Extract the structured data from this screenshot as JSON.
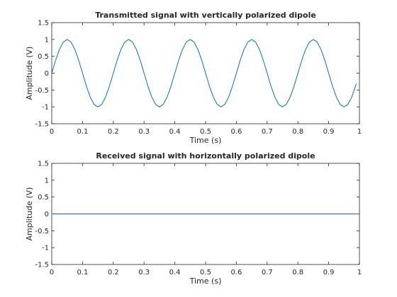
{
  "chart_data": [
    {
      "type": "line",
      "title": "Transmitted signal with vertically polarized dipole",
      "xlabel": "Time (s)",
      "ylabel": "Amplitude (V)",
      "xlim": [
        0,
        1
      ],
      "ylim": [
        -1.5,
        1.5
      ],
      "x_ticks": [
        "0",
        "0.1",
        "0.2",
        "0.3",
        "0.4",
        "0.5",
        "0.6",
        "0.7",
        "0.8",
        "0.9",
        "1"
      ],
      "y_ticks": [
        "-1.5",
        "-1",
        "-0.5",
        "0",
        "0.5",
        "1",
        "1.5"
      ],
      "grid": false,
      "line_color": "#0072bd",
      "series": [
        {
          "x": [
            0,
            0.0125,
            0.025,
            0.0375,
            0.05,
            0.0625,
            0.075,
            0.0875,
            0.1,
            0.1125,
            0.125,
            0.1375,
            0.15,
            0.1625,
            0.175,
            0.1875,
            0.2,
            0.2125,
            0.225,
            0.2375,
            0.25,
            0.2625,
            0.275,
            0.2875,
            0.3,
            0.3125,
            0.325,
            0.3375,
            0.35,
            0.3625,
            0.375,
            0.3875,
            0.4,
            0.4125,
            0.425,
            0.4375,
            0.45,
            0.4625,
            0.475,
            0.4875,
            0.5,
            0.5125,
            0.525,
            0.5375,
            0.55,
            0.5625,
            0.575,
            0.5875,
            0.6,
            0.6125,
            0.625,
            0.6375,
            0.65,
            0.6625,
            0.675,
            0.6875,
            0.7,
            0.7125,
            0.725,
            0.7375,
            0.75,
            0.7625,
            0.775,
            0.7875,
            0.8,
            0.8125,
            0.825,
            0.8375,
            0.85,
            0.8625,
            0.875,
            0.8875,
            0.9,
            0.9125,
            0.925,
            0.9375,
            0.95,
            0.9625,
            0.975,
            0.99
          ],
          "values": [
            0,
            0.383,
            0.707,
            0.924,
            1,
            0.924,
            0.707,
            0.383,
            0,
            -0.383,
            -0.707,
            -0.924,
            -1,
            -0.924,
            -0.707,
            -0.383,
            0,
            0.383,
            0.707,
            0.924,
            1,
            0.924,
            0.707,
            0.383,
            0,
            -0.383,
            -0.707,
            -0.924,
            -1,
            -0.924,
            -0.707,
            -0.383,
            0,
            0.383,
            0.707,
            0.924,
            1,
            0.924,
            0.707,
            0.383,
            0,
            -0.383,
            -0.707,
            -0.924,
            -1,
            -0.924,
            -0.707,
            -0.383,
            0,
            0.383,
            0.707,
            0.924,
            1,
            0.924,
            0.707,
            0.383,
            0,
            -0.383,
            -0.707,
            -0.924,
            -1,
            -0.924,
            -0.707,
            -0.383,
            0,
            0.383,
            0.707,
            0.924,
            1,
            0.924,
            0.707,
            0.383,
            0,
            -0.383,
            -0.707,
            -0.924,
            -1,
            -0.924,
            -0.707,
            -0.309
          ]
        }
      ]
    },
    {
      "type": "line",
      "title": "Received signal with horizontally polarized dipole",
      "xlabel": "Time (s)",
      "ylabel": "Amplitude (V)",
      "xlim": [
        0,
        1
      ],
      "ylim": [
        -1.5,
        1.5
      ],
      "x_ticks": [
        "0",
        "0.1",
        "0.2",
        "0.3",
        "0.4",
        "0.5",
        "0.6",
        "0.7",
        "0.8",
        "0.9",
        "1"
      ],
      "y_ticks": [
        "-1.5",
        "-1",
        "-0.5",
        "0",
        "0.5",
        "1",
        "1.5"
      ],
      "grid": false,
      "line_color": "#0072bd",
      "series": [
        {
          "x": [
            0,
            0.99
          ],
          "values": [
            0,
            0
          ]
        }
      ]
    }
  ]
}
